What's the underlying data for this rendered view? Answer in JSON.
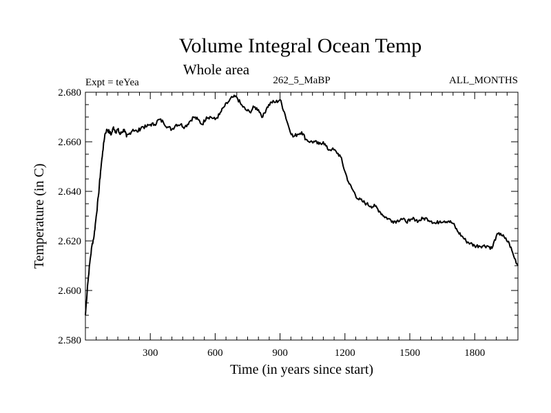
{
  "chart_data": {
    "type": "line",
    "title": "Volume Integral Ocean Temp",
    "subtitle": "Whole area",
    "annotations": {
      "left": "Expt = teYea",
      "center": "262_5_MaBP",
      "right": "ALL_MONTHS"
    },
    "xlabel": "Time (in years since start)",
    "ylabel": "Temperature (in C)",
    "xlim": [
      0,
      2000
    ],
    "ylim": [
      2.58,
      2.68
    ],
    "x_ticks": [
      300,
      600,
      900,
      1200,
      1500,
      1800
    ],
    "x_tick_labels": [
      "300",
      "600",
      "900",
      "1200",
      "1500",
      "1800"
    ],
    "y_ticks": [
      2.58,
      2.6,
      2.62,
      2.64,
      2.66,
      2.68
    ],
    "y_tick_labels": [
      "2.580",
      "2.600",
      "2.620",
      "2.640",
      "2.660",
      "2.680"
    ],
    "grid": false,
    "series": [
      {
        "name": "Volume integral ocean temperature",
        "color": "#000000",
        "x": [
          0,
          10,
          20,
          30,
          40,
          50,
          60,
          70,
          80,
          90,
          100,
          110,
          120,
          130,
          140,
          150,
          160,
          170,
          180,
          190,
          200,
          220,
          240,
          260,
          280,
          300,
          320,
          340,
          360,
          380,
          400,
          420,
          440,
          460,
          480,
          500,
          520,
          540,
          560,
          580,
          600,
          620,
          640,
          660,
          680,
          700,
          720,
          740,
          760,
          780,
          800,
          820,
          840,
          860,
          880,
          900,
          920,
          940,
          960,
          980,
          1000,
          1020,
          1040,
          1060,
          1080,
          1100,
          1120,
          1140,
          1160,
          1180,
          1200,
          1220,
          1240,
          1260,
          1280,
          1300,
          1320,
          1340,
          1360,
          1380,
          1400,
          1420,
          1440,
          1460,
          1480,
          1500,
          1520,
          1540,
          1560,
          1580,
          1600,
          1620,
          1640,
          1660,
          1680,
          1700,
          1720,
          1740,
          1760,
          1780,
          1800,
          1820,
          1840,
          1860,
          1880,
          1900,
          1920,
          1940,
          1960,
          1980,
          2000
        ],
        "values": [
          2.59,
          2.602,
          2.611,
          2.618,
          2.622,
          2.63,
          2.638,
          2.648,
          2.656,
          2.663,
          2.665,
          2.664,
          2.663,
          2.666,
          2.664,
          2.665,
          2.663,
          2.664,
          2.665,
          2.662,
          2.663,
          2.665,
          2.664,
          2.666,
          2.666,
          2.667,
          2.667,
          2.669,
          2.668,
          2.666,
          2.665,
          2.667,
          2.667,
          2.666,
          2.668,
          2.67,
          2.669,
          2.667,
          2.67,
          2.67,
          2.669,
          2.671,
          2.674,
          2.676,
          2.678,
          2.678,
          2.675,
          2.673,
          2.672,
          2.674,
          2.673,
          2.67,
          2.674,
          2.676,
          2.676,
          2.677,
          2.672,
          2.666,
          2.662,
          2.663,
          2.664,
          2.661,
          2.66,
          2.66,
          2.659,
          2.66,
          2.657,
          2.657,
          2.656,
          2.654,
          2.648,
          2.643,
          2.64,
          2.637,
          2.636,
          2.635,
          2.634,
          2.634,
          2.632,
          2.63,
          2.629,
          2.628,
          2.628,
          2.629,
          2.628,
          2.628,
          2.629,
          2.628,
          2.629,
          2.629,
          2.628,
          2.627,
          2.628,
          2.628,
          2.628,
          2.627,
          2.624,
          2.622,
          2.62,
          2.619,
          2.618,
          2.618,
          2.618,
          2.618,
          2.617,
          2.622,
          2.623,
          2.621,
          2.619,
          2.614,
          2.61
        ]
      }
    ]
  }
}
